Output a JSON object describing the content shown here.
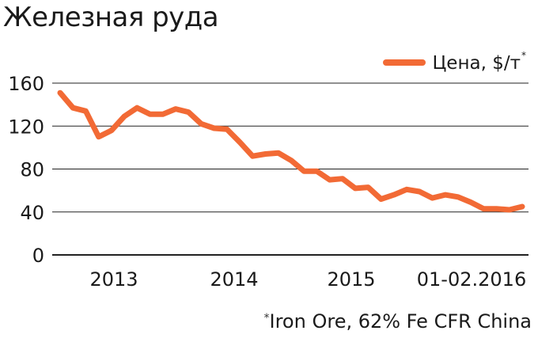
{
  "title": "Железная руда",
  "footnote": {
    "marker": "*",
    "text": "Iron Ore, 62% Fe CFR China"
  },
  "colors": {
    "line": "#F26A35",
    "grid": "#222222"
  },
  "chart_data": {
    "type": "line",
    "title": "Железная руда",
    "xlabel": "",
    "ylabel": "",
    "ylim": [
      0,
      160
    ],
    "y_ticks": [
      0,
      40,
      80,
      120,
      160
    ],
    "x_tick_labels": [
      "2013",
      "2014",
      "2015",
      "01-02.2016"
    ],
    "grid": true,
    "legend_position": "top-right",
    "series": [
      {
        "name": "Цена, $/т",
        "name_marker": "*",
        "color": "#F26A35",
        "values": [
          151,
          137,
          134,
          110,
          116,
          129,
          137,
          131,
          131,
          136,
          133,
          122,
          118,
          117,
          105,
          92,
          94,
          95,
          88,
          78,
          78,
          70,
          71,
          62,
          63,
          52,
          56,
          61,
          59,
          53,
          56,
          54,
          49,
          43,
          43,
          42,
          45
        ]
      }
    ]
  }
}
